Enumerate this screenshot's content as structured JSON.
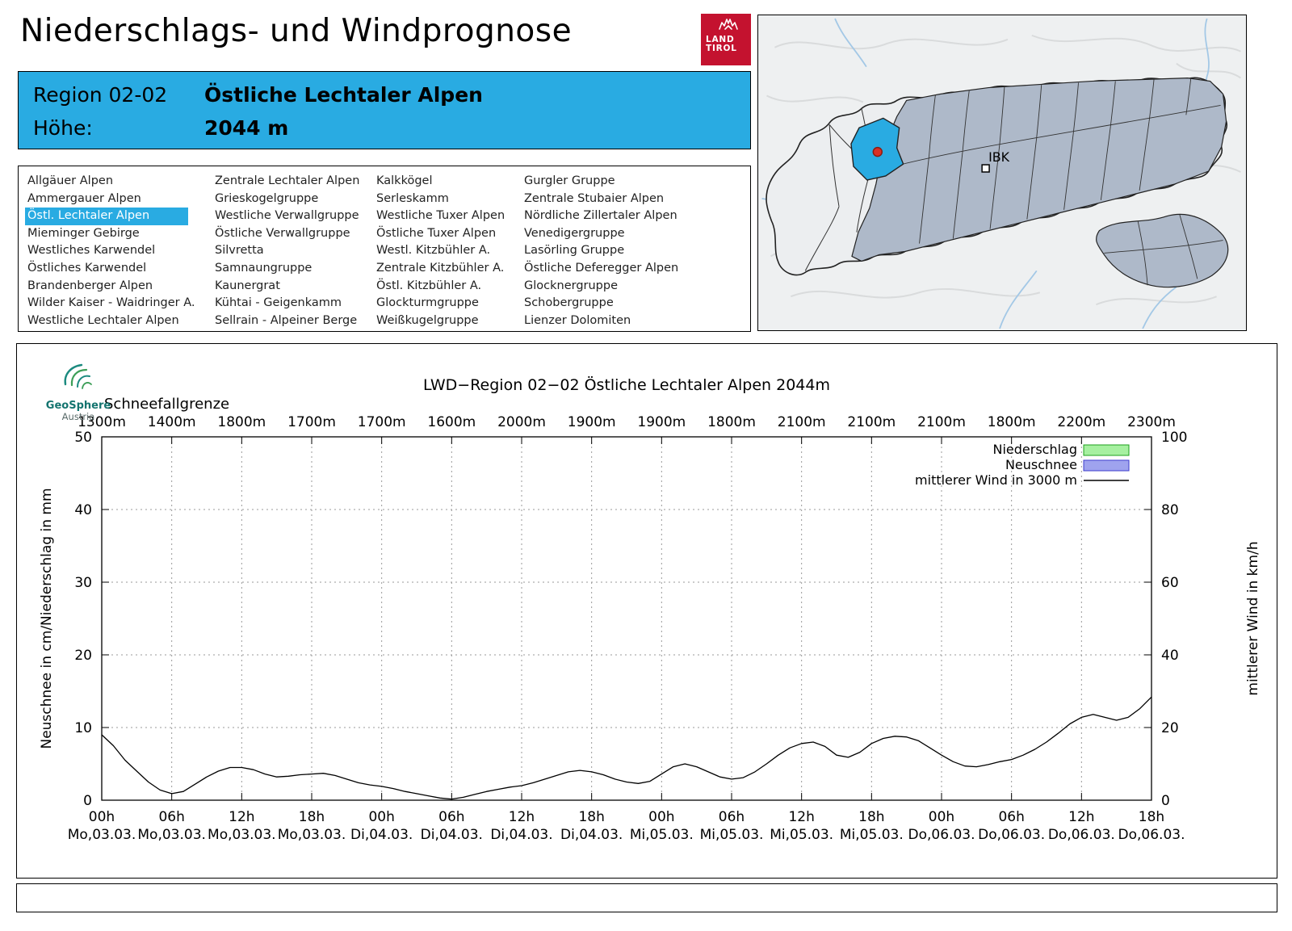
{
  "header": {
    "title": "Niederschlags- und Windprognose",
    "logo_line1": "LAND",
    "logo_line2": "TIROL"
  },
  "region_info": {
    "region_label": "Region 02-02",
    "region_name": "Östliche Lechtaler Alpen",
    "height_label": "Höhe:",
    "height_value": "2044 m"
  },
  "region_list": {
    "selected": "Östl. Lechtaler Alpen",
    "columns": [
      [
        "Allgäuer Alpen",
        "Ammergauer Alpen",
        "Östl. Lechtaler Alpen",
        "Mieminger Gebirge",
        "Westliches Karwendel",
        "Östliches Karwendel",
        "Brandenberger Alpen",
        "Wilder Kaiser - Waidringer A.",
        "Westliche Lechtaler Alpen"
      ],
      [
        "Zentrale Lechtaler Alpen",
        "Grieskogelgruppe",
        "Westliche Verwallgruppe",
        "Östliche Verwallgruppe",
        "Silvretta",
        "Samnaungruppe",
        "Kaunergrat",
        "Kühtai - Geigenkamm",
        "Sellrain - Alpeiner Berge"
      ],
      [
        "Kalkkögel",
        "Serleskamm",
        "Westliche Tuxer Alpen",
        "Östliche Tuxer Alpen",
        "Westl. Kitzbühler A.",
        "Zentrale Kitzbühler A.",
        "Östl. Kitzbühler A.",
        "Glockturmgruppe",
        "Weißkugelgruppe"
      ],
      [
        "Gurgler Gruppe",
        "Zentrale Stubaier Alpen",
        "Nördliche Zillertaler Alpen",
        "Venedigergruppe",
        "Lasörling Gruppe",
        "Östliche Deferegger Alpen",
        "Glocknergruppe",
        "Schobergruppe",
        "Lienzer Dolomiten"
      ]
    ]
  },
  "map": {
    "city_label": "IBK",
    "highlight_color": "#29abe2",
    "marker_color": "#d93025"
  },
  "branding": {
    "geosphere_line1": "GeoSphere",
    "geosphere_line2": "Austria"
  },
  "chart_data": {
    "type": "line",
    "title": "LWD−Region 02−02 Östliche Lechtaler Alpen 2044m",
    "snowline_label": "Schneefallgrenze",
    "snowline_values": [
      "1300m",
      "1400m",
      "1800m",
      "1700m",
      "1700m",
      "1600m",
      "2000m",
      "1900m",
      "1900m",
      "1800m",
      "2100m",
      "2100m",
      "2100m",
      "1800m",
      "2200m",
      "2300m"
    ],
    "x_hours": [
      "00h",
      "06h",
      "12h",
      "18h",
      "00h",
      "06h",
      "12h",
      "18h",
      "00h",
      "06h",
      "12h",
      "18h",
      "00h",
      "06h",
      "12h",
      "18h"
    ],
    "x_dates": [
      "Mo,03.03.",
      "Mo,03.03.",
      "Mo,03.03.",
      "Mo,03.03.",
      "Di,04.03.",
      "Di,04.03.",
      "Di,04.03.",
      "Di,04.03.",
      "Mi,05.03.",
      "Mi,05.03.",
      "Mi,05.03.",
      "Mi,05.03.",
      "Do,06.03.",
      "Do,06.03.",
      "Do,06.03.",
      "Do,06.03."
    ],
    "x_range_hours": [
      0,
      90
    ],
    "ylabel_left": "Neuschnee in cm/Niederschlag in mm",
    "ylabel_right": "mittlerer Wind in km/h",
    "ylim_left": [
      0,
      50
    ],
    "ylim_right": [
      0,
      100
    ],
    "yticks_left": [
      0,
      10,
      20,
      30,
      40,
      50
    ],
    "yticks_right": [
      0,
      20,
      40,
      60,
      80,
      100
    ],
    "grid": true,
    "legend_position": "top-right",
    "legend": [
      {
        "label": "Niederschlag",
        "type": "box",
        "fill": "#a6f0a0",
        "stroke": "#1ca01c"
      },
      {
        "label": "Neuschnee",
        "type": "box",
        "fill": "#9fa3ee",
        "stroke": "#3c3ccc"
      },
      {
        "label": "mittlerer Wind in 3000 m",
        "type": "line",
        "stroke": "#000000"
      }
    ],
    "series": [
      {
        "name": "mittlerer Wind in 3000 m",
        "axis": "right",
        "unit": "km/h",
        "points": [
          [
            0,
            18
          ],
          [
            1,
            15
          ],
          [
            2,
            11
          ],
          [
            3,
            8
          ],
          [
            4,
            5
          ],
          [
            5,
            2.8
          ],
          [
            6,
            1.8
          ],
          [
            7,
            2.4
          ],
          [
            8,
            4.4
          ],
          [
            9,
            6.4
          ],
          [
            10,
            8
          ],
          [
            11,
            9
          ],
          [
            12,
            9
          ],
          [
            13,
            8.4
          ],
          [
            14,
            7.2
          ],
          [
            15,
            6.4
          ],
          [
            16,
            6.6
          ],
          [
            17,
            7
          ],
          [
            18,
            7.2
          ],
          [
            19,
            7.4
          ],
          [
            20,
            6.8
          ],
          [
            21,
            5.8
          ],
          [
            22,
            4.8
          ],
          [
            23,
            4.2
          ],
          [
            24,
            3.8
          ],
          [
            25,
            3.2
          ],
          [
            26,
            2.4
          ],
          [
            27,
            1.8
          ],
          [
            28,
            1.2
          ],
          [
            29,
            0.6
          ],
          [
            30,
            0.3
          ],
          [
            31,
            0.8
          ],
          [
            32,
            1.6
          ],
          [
            33,
            2.4
          ],
          [
            34,
            3
          ],
          [
            35,
            3.6
          ],
          [
            36,
            4
          ],
          [
            37,
            4.8
          ],
          [
            38,
            5.8
          ],
          [
            39,
            6.8
          ],
          [
            40,
            7.8
          ],
          [
            41,
            8.2
          ],
          [
            42,
            7.8
          ],
          [
            43,
            7
          ],
          [
            44,
            5.8
          ],
          [
            45,
            5
          ],
          [
            46,
            4.6
          ],
          [
            47,
            5.2
          ],
          [
            48,
            7.2
          ],
          [
            49,
            9.2
          ],
          [
            50,
            10
          ],
          [
            51,
            9.2
          ],
          [
            52,
            7.8
          ],
          [
            53,
            6.4
          ],
          [
            54,
            5.8
          ],
          [
            55,
            6.2
          ],
          [
            56,
            7.8
          ],
          [
            57,
            10
          ],
          [
            58,
            12.4
          ],
          [
            59,
            14.4
          ],
          [
            60,
            15.6
          ],
          [
            61,
            16
          ],
          [
            62,
            14.8
          ],
          [
            63,
            12.4
          ],
          [
            64,
            11.8
          ],
          [
            65,
            13.2
          ],
          [
            66,
            15.6
          ],
          [
            67,
            17
          ],
          [
            68,
            17.6
          ],
          [
            69,
            17.4
          ],
          [
            70,
            16.4
          ],
          [
            71,
            14.4
          ],
          [
            72,
            12.4
          ],
          [
            73,
            10.6
          ],
          [
            74,
            9.4
          ],
          [
            75,
            9.2
          ],
          [
            76,
            9.8
          ],
          [
            77,
            10.6
          ],
          [
            78,
            11.2
          ],
          [
            79,
            12.4
          ],
          [
            80,
            14
          ],
          [
            81,
            16
          ],
          [
            82,
            18.4
          ],
          [
            83,
            21
          ],
          [
            84,
            22.8
          ],
          [
            85,
            23.6
          ],
          [
            86,
            22.8
          ],
          [
            87,
            22
          ],
          [
            88,
            22.8
          ],
          [
            89,
            25.2
          ],
          [
            90,
            28.4
          ]
        ]
      },
      {
        "name": "Niederschlag",
        "axis": "left",
        "unit": "mm",
        "points": []
      },
      {
        "name": "Neuschnee",
        "axis": "left",
        "unit": "cm",
        "points": []
      }
    ]
  }
}
